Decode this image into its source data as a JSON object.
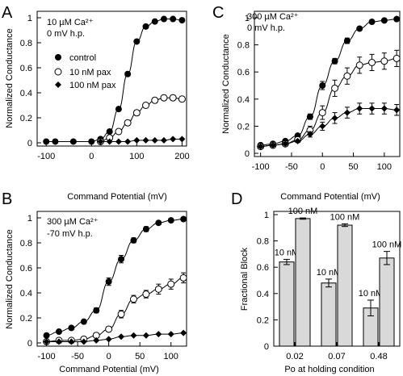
{
  "panels": {
    "A": {
      "letter": "A",
      "annot": [
        "10 µM Ca²⁺",
        "0 mV h.p."
      ]
    },
    "B": {
      "letter": "B",
      "annot": [
        "300 µM Ca²⁺",
        "-70 mV h.p."
      ]
    },
    "C": {
      "letter": "C",
      "annot": [
        "300 µM Ca²⁺",
        "0 mV h.p."
      ]
    },
    "D": {
      "letter": "D"
    }
  },
  "legend": {
    "control": "control",
    "pax10": "10 nM pax",
    "pax100": "100 nM pax"
  },
  "chart_data": [
    {
      "panel": "A",
      "type": "scatter",
      "xlabel": "Command Potential (mV)",
      "ylabel": "Normalized Conductance",
      "xlim": [
        -120,
        210
      ],
      "ylim": [
        0,
        1
      ],
      "xticks": [
        -100,
        0,
        100,
        200
      ],
      "yticks": [
        0,
        0.2,
        0.4,
        0.6,
        0.8,
        1
      ],
      "legend_position": "upper-left",
      "series": [
        {
          "name": "control",
          "marker": "filled-circle",
          "x": [
            -100,
            -80,
            -40,
            0,
            20,
            40,
            60,
            80,
            100,
            120,
            140,
            160,
            180,
            200
          ],
          "y": [
            0.01,
            0.01,
            0.01,
            0.01,
            0.03,
            0.09,
            0.27,
            0.55,
            0.81,
            0.93,
            0.97,
            0.99,
            0.99,
            0.98
          ]
        },
        {
          "name": "10 nM pax",
          "marker": "open-circle",
          "x": [
            20,
            40,
            60,
            80,
            100,
            120,
            140,
            160,
            180,
            200
          ],
          "y": [
            0.01,
            0.04,
            0.09,
            0.16,
            0.24,
            0.3,
            0.34,
            0.36,
            0.36,
            0.35
          ],
          "err": [
            0.01,
            0.01,
            0.015,
            0.02,
            0.02,
            0.02,
            0.02,
            0.02,
            0.02,
            0.02
          ]
        },
        {
          "name": "100 nM pax",
          "marker": "filled-diamond",
          "x": [
            20,
            40,
            60,
            80,
            100,
            120,
            140,
            160,
            180,
            200
          ],
          "y": [
            0.01,
            0.01,
            0.01,
            0.01,
            0.02,
            0.02,
            0.02,
            0.02,
            0.03,
            0.03
          ]
        }
      ]
    },
    {
      "panel": "B",
      "type": "scatter",
      "xlabel": "Command Potential (mV)",
      "ylabel": "Normalized Conductance",
      "xlim": [
        -115,
        125
      ],
      "ylim": [
        0,
        1
      ],
      "xticks": [
        -100,
        -50,
        0,
        50,
        100
      ],
      "yticks": [
        0,
        0.2,
        0.4,
        0.6,
        0.8,
        1
      ],
      "series": [
        {
          "name": "control",
          "marker": "filled-circle",
          "x": [
            -100,
            -80,
            -60,
            -40,
            -20,
            0,
            20,
            40,
            60,
            80,
            100,
            120
          ],
          "y": [
            0.06,
            0.09,
            0.12,
            0.17,
            0.26,
            0.49,
            0.67,
            0.82,
            0.91,
            0.96,
            0.98,
            0.99
          ],
          "err": [
            0.01,
            0.01,
            0.01,
            0.01,
            0.02,
            0.03,
            0.03,
            0.02,
            0.02,
            0.01,
            0.01,
            0.01
          ]
        },
        {
          "name": "10 nM pax",
          "marker": "open-circle",
          "x": [
            -100,
            -80,
            -60,
            -40,
            -20,
            0,
            20,
            40,
            60,
            80,
            100,
            120
          ],
          "y": [
            0.01,
            0.02,
            0.02,
            0.03,
            0.06,
            0.11,
            0.23,
            0.35,
            0.39,
            0.43,
            0.47,
            0.52
          ],
          "err": [
            0.005,
            0.005,
            0.01,
            0.01,
            0.01,
            0.02,
            0.03,
            0.03,
            0.03,
            0.04,
            0.04,
            0.04
          ]
        },
        {
          "name": "100 nM pax",
          "marker": "filled-diamond",
          "x": [
            -100,
            -80,
            -60,
            -40,
            -20,
            0,
            20,
            40,
            60,
            80,
            100,
            120
          ],
          "y": [
            0.01,
            0.01,
            0.01,
            0.01,
            0.02,
            0.03,
            0.05,
            0.06,
            0.06,
            0.07,
            0.07,
            0.08
          ]
        }
      ]
    },
    {
      "panel": "C",
      "type": "scatter",
      "xlabel": "Command Potential (mV)",
      "ylabel": "Normalized Conductance",
      "xlim": [
        -110,
        125
      ],
      "ylim": [
        0,
        1
      ],
      "xticks": [
        -100,
        -50,
        0,
        50,
        100
      ],
      "yticks": [
        0,
        0.2,
        0.4,
        0.6,
        0.8,
        1
      ],
      "series": [
        {
          "name": "control",
          "marker": "filled-circle",
          "x": [
            -100,
            -80,
            -60,
            -40,
            -20,
            0,
            20,
            40,
            60,
            80,
            100,
            120
          ],
          "y": [
            0.06,
            0.07,
            0.09,
            0.13,
            0.27,
            0.5,
            0.68,
            0.83,
            0.92,
            0.97,
            0.98,
            0.99
          ],
          "err": [
            0.01,
            0.01,
            0.01,
            0.01,
            0.02,
            0.03,
            0.02,
            0.02,
            0.01,
            0.01,
            0.01,
            0.01
          ]
        },
        {
          "name": "10 nM pax",
          "marker": "open-circle",
          "x": [
            -100,
            -80,
            -60,
            -40,
            -20,
            0,
            20,
            40,
            60,
            80,
            100,
            120
          ],
          "y": [
            0.05,
            0.06,
            0.07,
            0.1,
            0.17,
            0.3,
            0.48,
            0.57,
            0.65,
            0.67,
            0.68,
            0.7
          ],
          "err": [
            0.01,
            0.01,
            0.01,
            0.02,
            0.03,
            0.05,
            0.06,
            0.06,
            0.06,
            0.06,
            0.06,
            0.06
          ]
        },
        {
          "name": "100 nM pax",
          "marker": "filled-diamond",
          "x": [
            -100,
            -80,
            -60,
            -40,
            -20,
            0,
            20,
            40,
            60,
            80,
            100,
            120
          ],
          "y": [
            0.05,
            0.06,
            0.07,
            0.09,
            0.14,
            0.2,
            0.26,
            0.3,
            0.33,
            0.33,
            0.33,
            0.32
          ],
          "err": [
            0.01,
            0.01,
            0.01,
            0.01,
            0.02,
            0.03,
            0.04,
            0.04,
            0.04,
            0.04,
            0.04,
            0.04
          ]
        }
      ]
    },
    {
      "panel": "D",
      "type": "bar",
      "title": "Command Potential (mV)",
      "xlabel": "Po at holding condition",
      "ylabel": "Fractional Block",
      "categories": [
        "0.02",
        "0.07",
        "0.48"
      ],
      "ylim": [
        0,
        1
      ],
      "yticks": [
        0,
        0.2,
        0.4,
        0.6,
        0.8,
        1
      ],
      "series": [
        {
          "name": "10 nM",
          "values": [
            0.64,
            0.48,
            0.29
          ],
          "err": [
            0.02,
            0.03,
            0.06
          ]
        },
        {
          "name": "100 nM",
          "values": [
            0.97,
            0.92,
            0.67
          ],
          "err": [
            0.005,
            0.01,
            0.05
          ]
        }
      ],
      "bar_labels": [
        [
          "10 nM",
          "100 nM"
        ],
        [
          "10 nM",
          "100 nM"
        ],
        [
          "10 nM",
          "100 nM"
        ]
      ]
    }
  ]
}
